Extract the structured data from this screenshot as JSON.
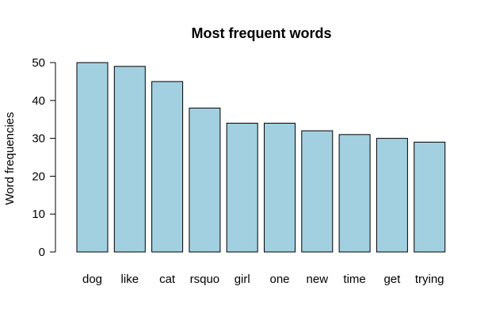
{
  "chart_data": {
    "type": "bar",
    "title": "Most frequent words",
    "xlabel": "",
    "ylabel": "Word frequencies",
    "categories": [
      "dog",
      "like",
      "cat",
      "rsquo",
      "girl",
      "one",
      "new",
      "time",
      "get",
      "trying"
    ],
    "values": [
      50,
      49,
      45,
      38,
      34,
      34,
      32,
      31,
      30,
      29
    ],
    "ylim": [
      0,
      50
    ],
    "yticks": [
      0,
      10,
      20,
      30,
      40,
      50
    ],
    "grid": false,
    "bar_color": "#a2d0e1"
  }
}
